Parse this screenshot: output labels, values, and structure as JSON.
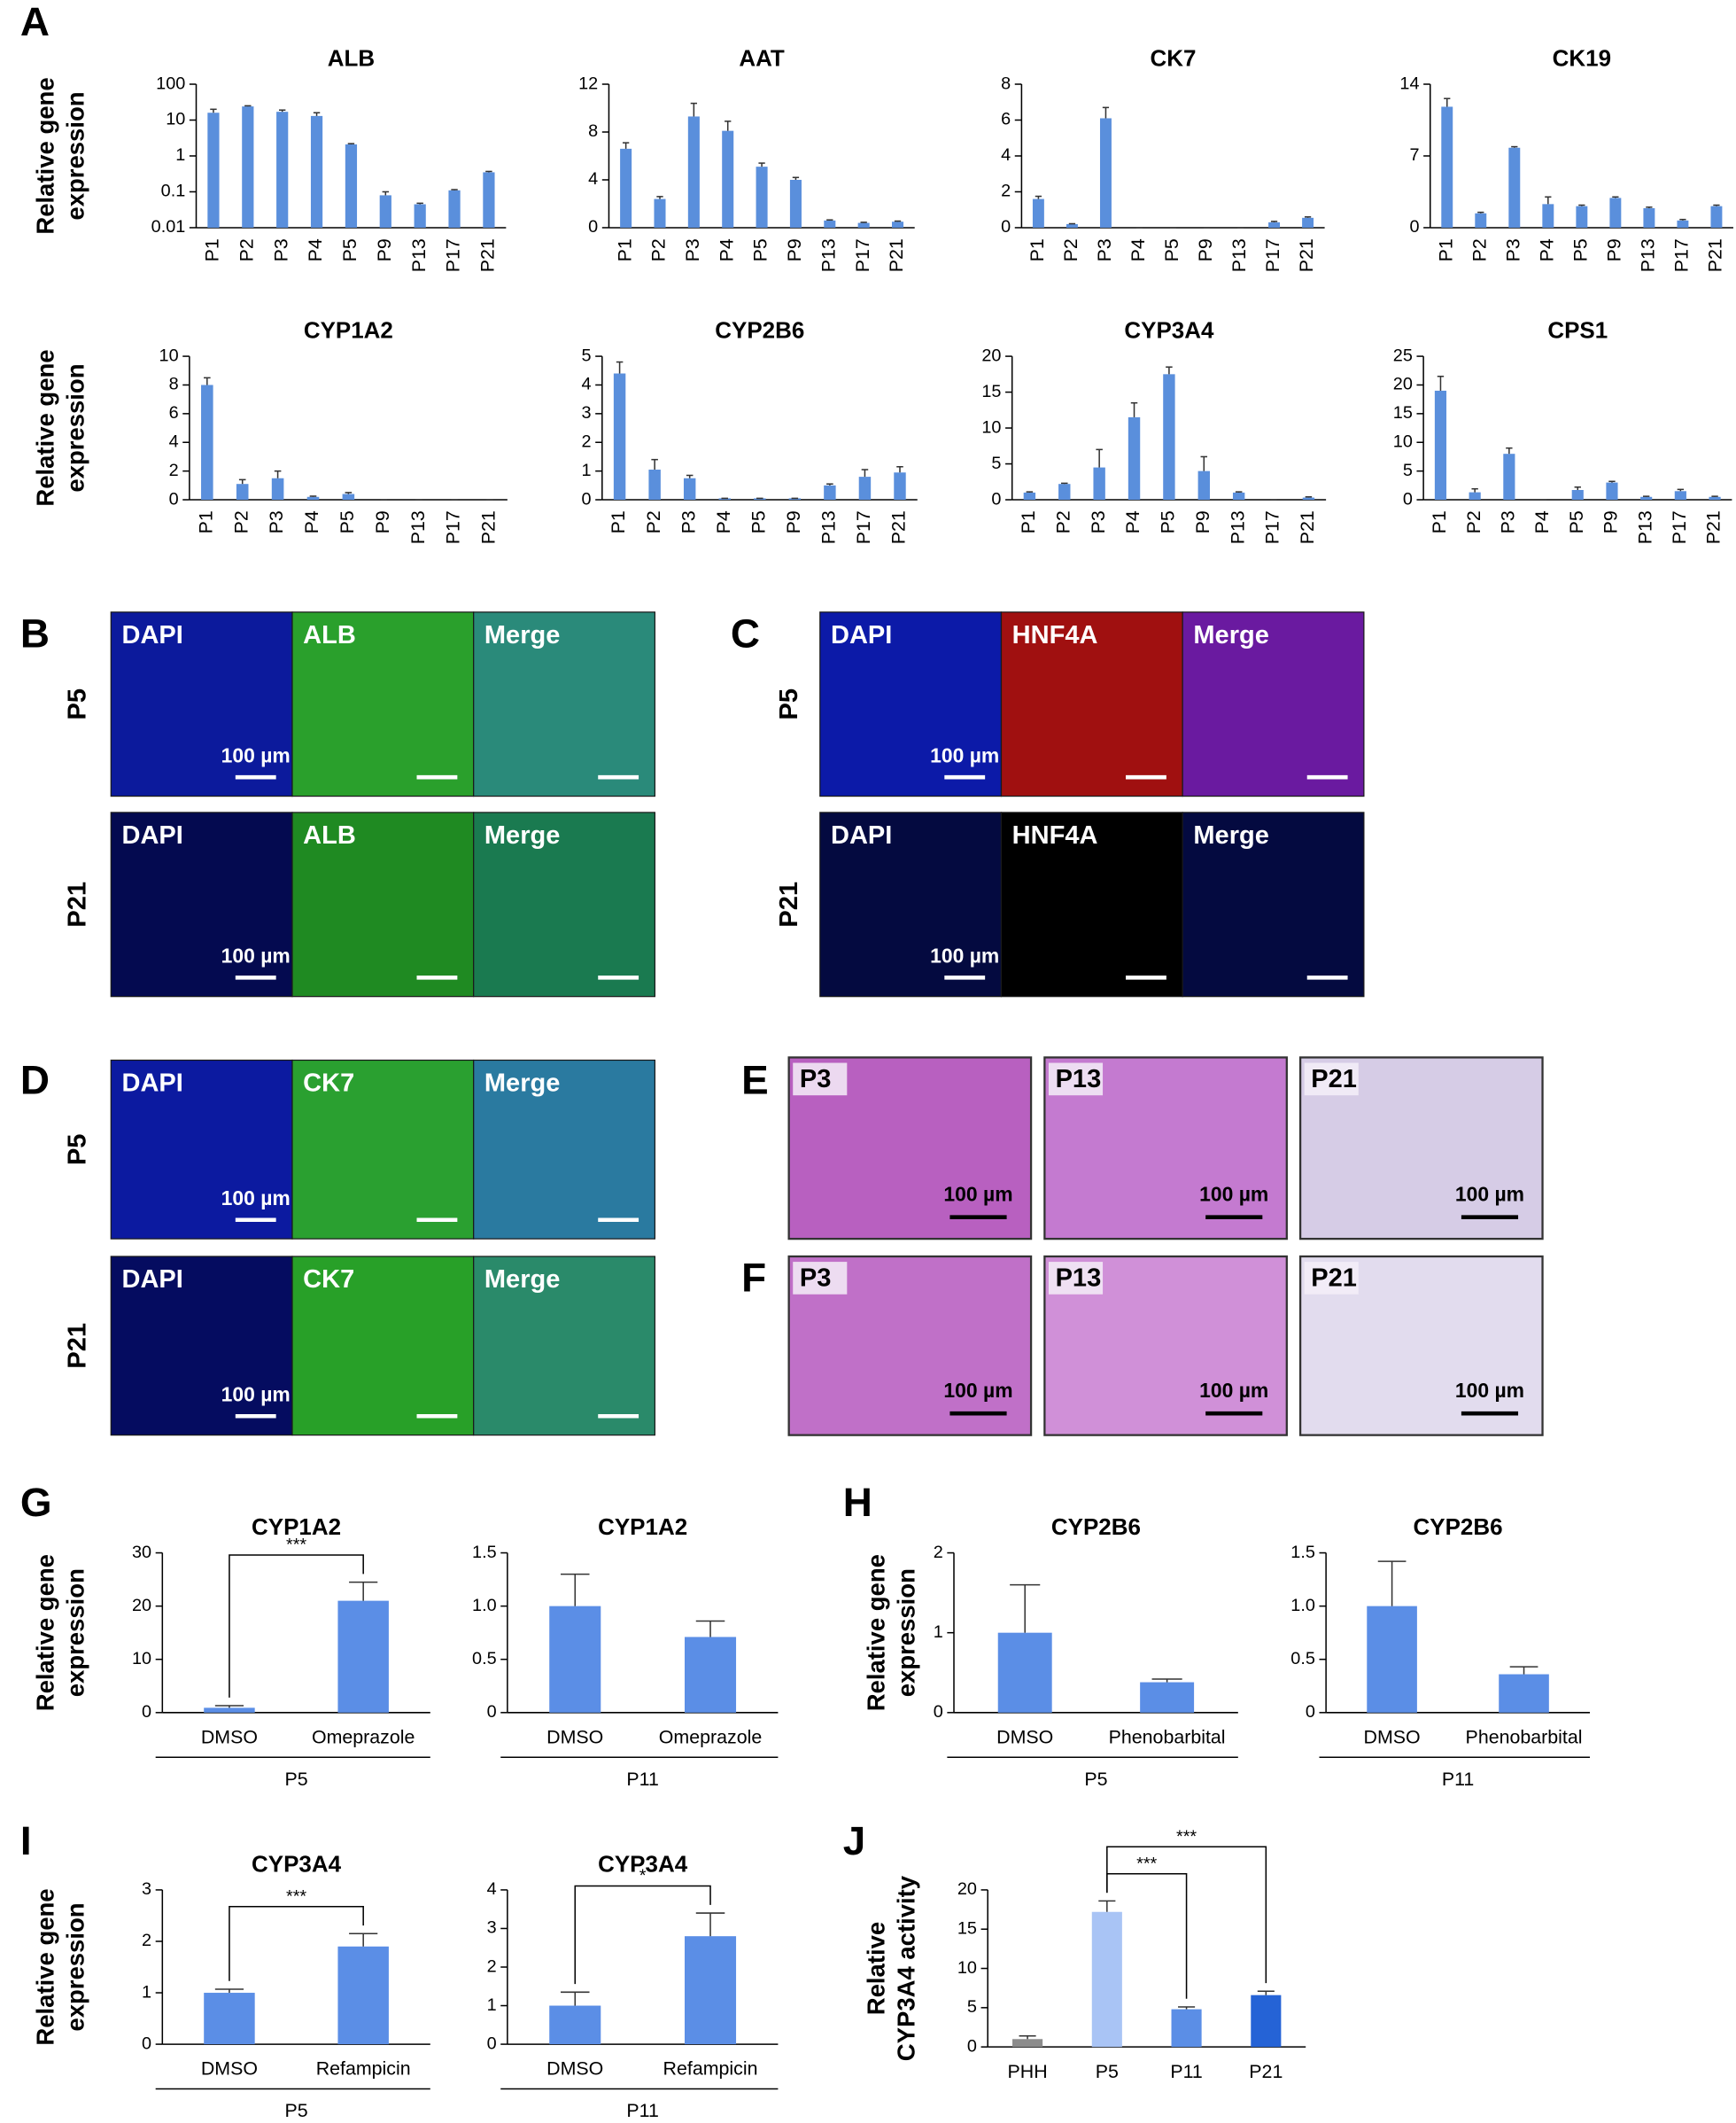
{
  "panel_labels": [
    "A",
    "B",
    "C",
    "D",
    "E",
    "F",
    "G",
    "H",
    "I",
    "J"
  ],
  "chart_data": [
    {
      "type": "bar",
      "title": "ALB",
      "y_label": [
        "Relative gene",
        "expression"
      ],
      "log_y": true,
      "categories": [
        "P1",
        "P2",
        "P3",
        "P4",
        "P5",
        "P9",
        "P13",
        "P17",
        "P21"
      ],
      "values": [
        16,
        24,
        17,
        13,
        2.1,
        0.08,
        0.045,
        0.11,
        0.35
      ],
      "errors": [
        4,
        1,
        2,
        3,
        0.1,
        0.02,
        0.003,
        0.005,
        0.02
      ],
      "color": "#5a8fdc",
      "ylim": [
        0.01,
        100
      ],
      "yticks": [
        0.01,
        0.1,
        1,
        10,
        100
      ]
    },
    {
      "type": "bar",
      "title": "AAT",
      "categories": [
        "P1",
        "P2",
        "P3",
        "P4",
        "P5",
        "P9",
        "P13",
        "P17",
        "P21"
      ],
      "values": [
        6.6,
        2.4,
        9.3,
        8.1,
        5.1,
        4.0,
        0.6,
        0.4,
        0.5
      ],
      "errors": [
        0.5,
        0.2,
        1.1,
        0.8,
        0.3,
        0.2,
        0.05,
        0.05,
        0.05
      ],
      "color": "#5a8fdc",
      "ylim": [
        0,
        12
      ],
      "yticks": [
        0,
        4,
        8,
        12
      ]
    },
    {
      "type": "bar",
      "title": "CK7",
      "categories": [
        "P1",
        "P2",
        "P3",
        "P4",
        "P5",
        "P9",
        "P13",
        "P17",
        "P21"
      ],
      "values": [
        1.6,
        0.2,
        6.1,
        0,
        0,
        0,
        0,
        0.3,
        0.55
      ],
      "errors": [
        0.15,
        0.02,
        0.6,
        0,
        0,
        0,
        0,
        0.05,
        0.05
      ],
      "color": "#5a8fdc",
      "ylim": [
        0,
        8
      ],
      "yticks": [
        0,
        2,
        4,
        6,
        8
      ]
    },
    {
      "type": "bar",
      "title": "CK19",
      "categories": [
        "P1",
        "P2",
        "P3",
        "P4",
        "P5",
        "P9",
        "P13",
        "P17",
        "P21"
      ],
      "values": [
        11.8,
        1.4,
        7.8,
        2.3,
        2.1,
        2.9,
        1.9,
        0.7,
        2.1
      ],
      "errors": [
        0.8,
        0.1,
        0.1,
        0.7,
        0.1,
        0.1,
        0.1,
        0.1,
        0.1
      ],
      "color": "#5a8fdc",
      "ylim": [
        0,
        14
      ],
      "yticks": [
        0,
        7,
        14
      ]
    },
    {
      "type": "bar",
      "title": "CYP1A2",
      "y_label": [
        "Relative gene",
        "expression"
      ],
      "categories": [
        "P1",
        "P2",
        "P3",
        "P4",
        "P5",
        "P9",
        "P13",
        "P17",
        "P21"
      ],
      "values": [
        8,
        1.1,
        1.5,
        0.2,
        0.4,
        0,
        0,
        0,
        0
      ],
      "errors": [
        0.5,
        0.3,
        0.5,
        0.05,
        0.1,
        0,
        0,
        0,
        0
      ],
      "color": "#5a8fdc",
      "ylim": [
        0,
        10
      ],
      "yticks": [
        0,
        2,
        4,
        6,
        8,
        10
      ]
    },
    {
      "type": "bar",
      "title": "CYP2B6",
      "categories": [
        "P1",
        "P2",
        "P3",
        "P4",
        "P5",
        "P9",
        "P13",
        "P17",
        "P21"
      ],
      "values": [
        4.4,
        1.05,
        0.75,
        0.05,
        0.05,
        0.05,
        0.5,
        0.8,
        0.95
      ],
      "errors": [
        0.4,
        0.35,
        0.1,
        0,
        0,
        0,
        0.05,
        0.25,
        0.2
      ],
      "color": "#5a8fdc",
      "ylim": [
        0,
        5
      ],
      "yticks": [
        0,
        1,
        2,
        3,
        4,
        5
      ]
    },
    {
      "type": "bar",
      "title": "CYP3A4",
      "categories": [
        "P1",
        "P2",
        "P3",
        "P4",
        "P5",
        "P9",
        "P13",
        "P17",
        "P21"
      ],
      "values": [
        1,
        2.2,
        4.5,
        11.5,
        17.5,
        4,
        1,
        0,
        0.3
      ],
      "errors": [
        0.1,
        0.1,
        2.5,
        2,
        1,
        2,
        0.1,
        0,
        0.1
      ],
      "color": "#5a8fdc",
      "ylim": [
        0,
        20
      ],
      "yticks": [
        0,
        5,
        10,
        15,
        20
      ]
    },
    {
      "type": "bar",
      "title": "CPS1",
      "categories": [
        "P1",
        "P2",
        "P3",
        "P4",
        "P5",
        "P9",
        "P13",
        "P17",
        "P21"
      ],
      "values": [
        19,
        1.3,
        8,
        0,
        1.7,
        3,
        0.5,
        1.5,
        0.5
      ],
      "errors": [
        2.5,
        0.6,
        1,
        0,
        0.5,
        0.2,
        0.1,
        0.3,
        0.1
      ],
      "color": "#5a8fdc",
      "ylim": [
        0,
        25
      ],
      "yticks": [
        0,
        5,
        10,
        15,
        20,
        25
      ]
    },
    {
      "type": "bar",
      "title": "CYP1A2",
      "y_label": [
        "Relative gene",
        "expression"
      ],
      "categories": [
        "DMSO",
        "Omeprazole"
      ],
      "values": [
        0.9,
        21
      ],
      "errors": [
        0.4,
        3.5
      ],
      "color": "#5b8ee6",
      "ylim": [
        0,
        30
      ],
      "yticks": [
        0,
        10,
        20,
        30
      ],
      "group": "P5",
      "annotations": [
        {
          "label": "***",
          "between": [
            "DMSO",
            "Omeprazole"
          ]
        }
      ]
    },
    {
      "type": "bar",
      "title": "CYP1A2",
      "categories": [
        "DMSO",
        "Omeprazole"
      ],
      "values": [
        1,
        0.71
      ],
      "errors": [
        0.3,
        0.15
      ],
      "color": "#5b8ee6",
      "ylim": [
        0,
        1.5
      ],
      "yticks": [
        0,
        0.5,
        {
          "value": 1,
          "label": "1.0"
        },
        1.5
      ],
      "group": "P11"
    },
    {
      "type": "bar",
      "title": "CYP2B6",
      "y_label": [
        "Relative gene",
        "expression"
      ],
      "categories": [
        "DMSO",
        "Phenobarbital"
      ],
      "values": [
        1,
        0.38
      ],
      "errors": [
        0.6,
        0.04
      ],
      "color": "#5b8ee6",
      "ylim": [
        0,
        2
      ],
      "yticks": [
        0,
        1,
        2
      ],
      "group": "P5"
    },
    {
      "type": "bar",
      "title": "CYP2B6",
      "categories": [
        "DMSO",
        "Phenobarbital"
      ],
      "values": [
        1,
        0.36
      ],
      "errors": [
        0.42,
        0.07
      ],
      "color": "#5b8ee6",
      "ylim": [
        0,
        1.5
      ],
      "yticks": [
        0,
        0.5,
        {
          "value": 1,
          "label": "1.0"
        },
        1.5
      ],
      "group": "P11"
    },
    {
      "type": "bar",
      "title": "CYP3A4",
      "y_label": [
        "Relative gene",
        "expression"
      ],
      "categories": [
        "DMSO",
        "Refampicin"
      ],
      "values": [
        1,
        1.9
      ],
      "errors": [
        0.07,
        0.25
      ],
      "color": "#5b8ee6",
      "ylim": [
        0,
        3
      ],
      "yticks": [
        0,
        1,
        2,
        3
      ],
      "group": "P5",
      "annotations": [
        {
          "label": "***",
          "between": [
            "DMSO",
            "Refampicin"
          ]
        }
      ]
    },
    {
      "type": "bar",
      "title": "CYP3A4",
      "categories": [
        "DMSO",
        "Refampicin"
      ],
      "values": [
        1,
        2.8
      ],
      "errors": [
        0.35,
        0.6
      ],
      "color": "#5b8ee6",
      "ylim": [
        0,
        4
      ],
      "yticks": [
        0,
        1,
        2,
        3,
        4
      ],
      "group": "P11",
      "annotations": [
        {
          "label": "*",
          "between": [
            "DMSO",
            "Refampicin"
          ]
        }
      ]
    },
    {
      "type": "bar",
      "y_label": [
        "Relative",
        "CYP3A4 activity"
      ],
      "categories": [
        "PHH",
        "P5",
        "P11",
        "P21"
      ],
      "values": [
        1,
        17.2,
        4.8,
        6.6
      ],
      "errors": [
        0.4,
        1.4,
        0.3,
        0.5
      ],
      "colors": [
        "#8c8c8c",
        "#a9c4f5",
        "#5b8ee6",
        "#2563d6"
      ],
      "ylim": [
        0,
        20
      ],
      "yticks": [
        0,
        5,
        10,
        15,
        20
      ],
      "annotations": [
        {
          "label": "***",
          "between": [
            "P5",
            "P11"
          ]
        },
        {
          "label": "***",
          "between": [
            "P5",
            "P21"
          ]
        }
      ]
    }
  ],
  "micrographs": [
    {
      "scale_bar": "100 µm",
      "rows": [
        {
          "label": "P5",
          "tiles": [
            {
              "name": "DAPI",
              "color": "#0c1a9c"
            },
            {
              "name": "ALB",
              "color": "#2aa02c"
            },
            {
              "name": "Merge",
              "color": "#2a8a7a"
            }
          ]
        },
        {
          "label": "P21",
          "tiles": [
            {
              "name": "DAPI",
              "color": "#040a50"
            },
            {
              "name": "ALB",
              "color": "#1f8a22"
            },
            {
              "name": "Merge",
              "color": "#1a7a50"
            }
          ]
        }
      ]
    },
    {
      "scale_bar": "100 µm",
      "rows": [
        {
          "label": "P5",
          "tiles": [
            {
              "name": "DAPI",
              "color": "#0c1aa8"
            },
            {
              "name": "HNF4A",
              "color": "#a01010"
            },
            {
              "name": "Merge",
              "color": "#6a1aa0"
            }
          ]
        },
        {
          "label": "P21",
          "tiles": [
            {
              "name": "DAPI",
              "color": "#040a40"
            },
            {
              "name": "HNF4A",
              "color": "#000000"
            },
            {
              "name": "Merge",
              "color": "#040a40"
            }
          ]
        }
      ]
    },
    {
      "scale_bar": "100 µm",
      "rows": [
        {
          "label": "P5",
          "tiles": [
            {
              "name": "DAPI",
              "color": "#0c1aa0"
            },
            {
              "name": "CK7",
              "color": "#2aa030"
            },
            {
              "name": "Merge",
              "color": "#2a7aa0"
            }
          ]
        },
        {
          "label": "P21",
          "tiles": [
            {
              "name": "DAPI",
              "color": "#050c60"
            },
            {
              "name": "CK7",
              "color": "#28a028"
            },
            {
              "name": "Merge",
              "color": "#2a8a6a"
            }
          ]
        }
      ]
    },
    {
      "scale_bar": "100 µm",
      "rows": [
        {
          "tiles": [
            {
              "name": "P3",
              "color": "#b860c0"
            },
            {
              "name": "P13",
              "color": "#c47ad0"
            },
            {
              "name": "P21",
              "color": "#d6cce6"
            }
          ]
        }
      ]
    },
    {
      "scale_bar": "100 µm",
      "rows": [
        {
          "tiles": [
            {
              "name": "P3",
              "color": "#c070c8"
            },
            {
              "name": "P13",
              "color": "#d090d8"
            },
            {
              "name": "P21",
              "color": "#e2dcee"
            }
          ]
        }
      ]
    }
  ]
}
